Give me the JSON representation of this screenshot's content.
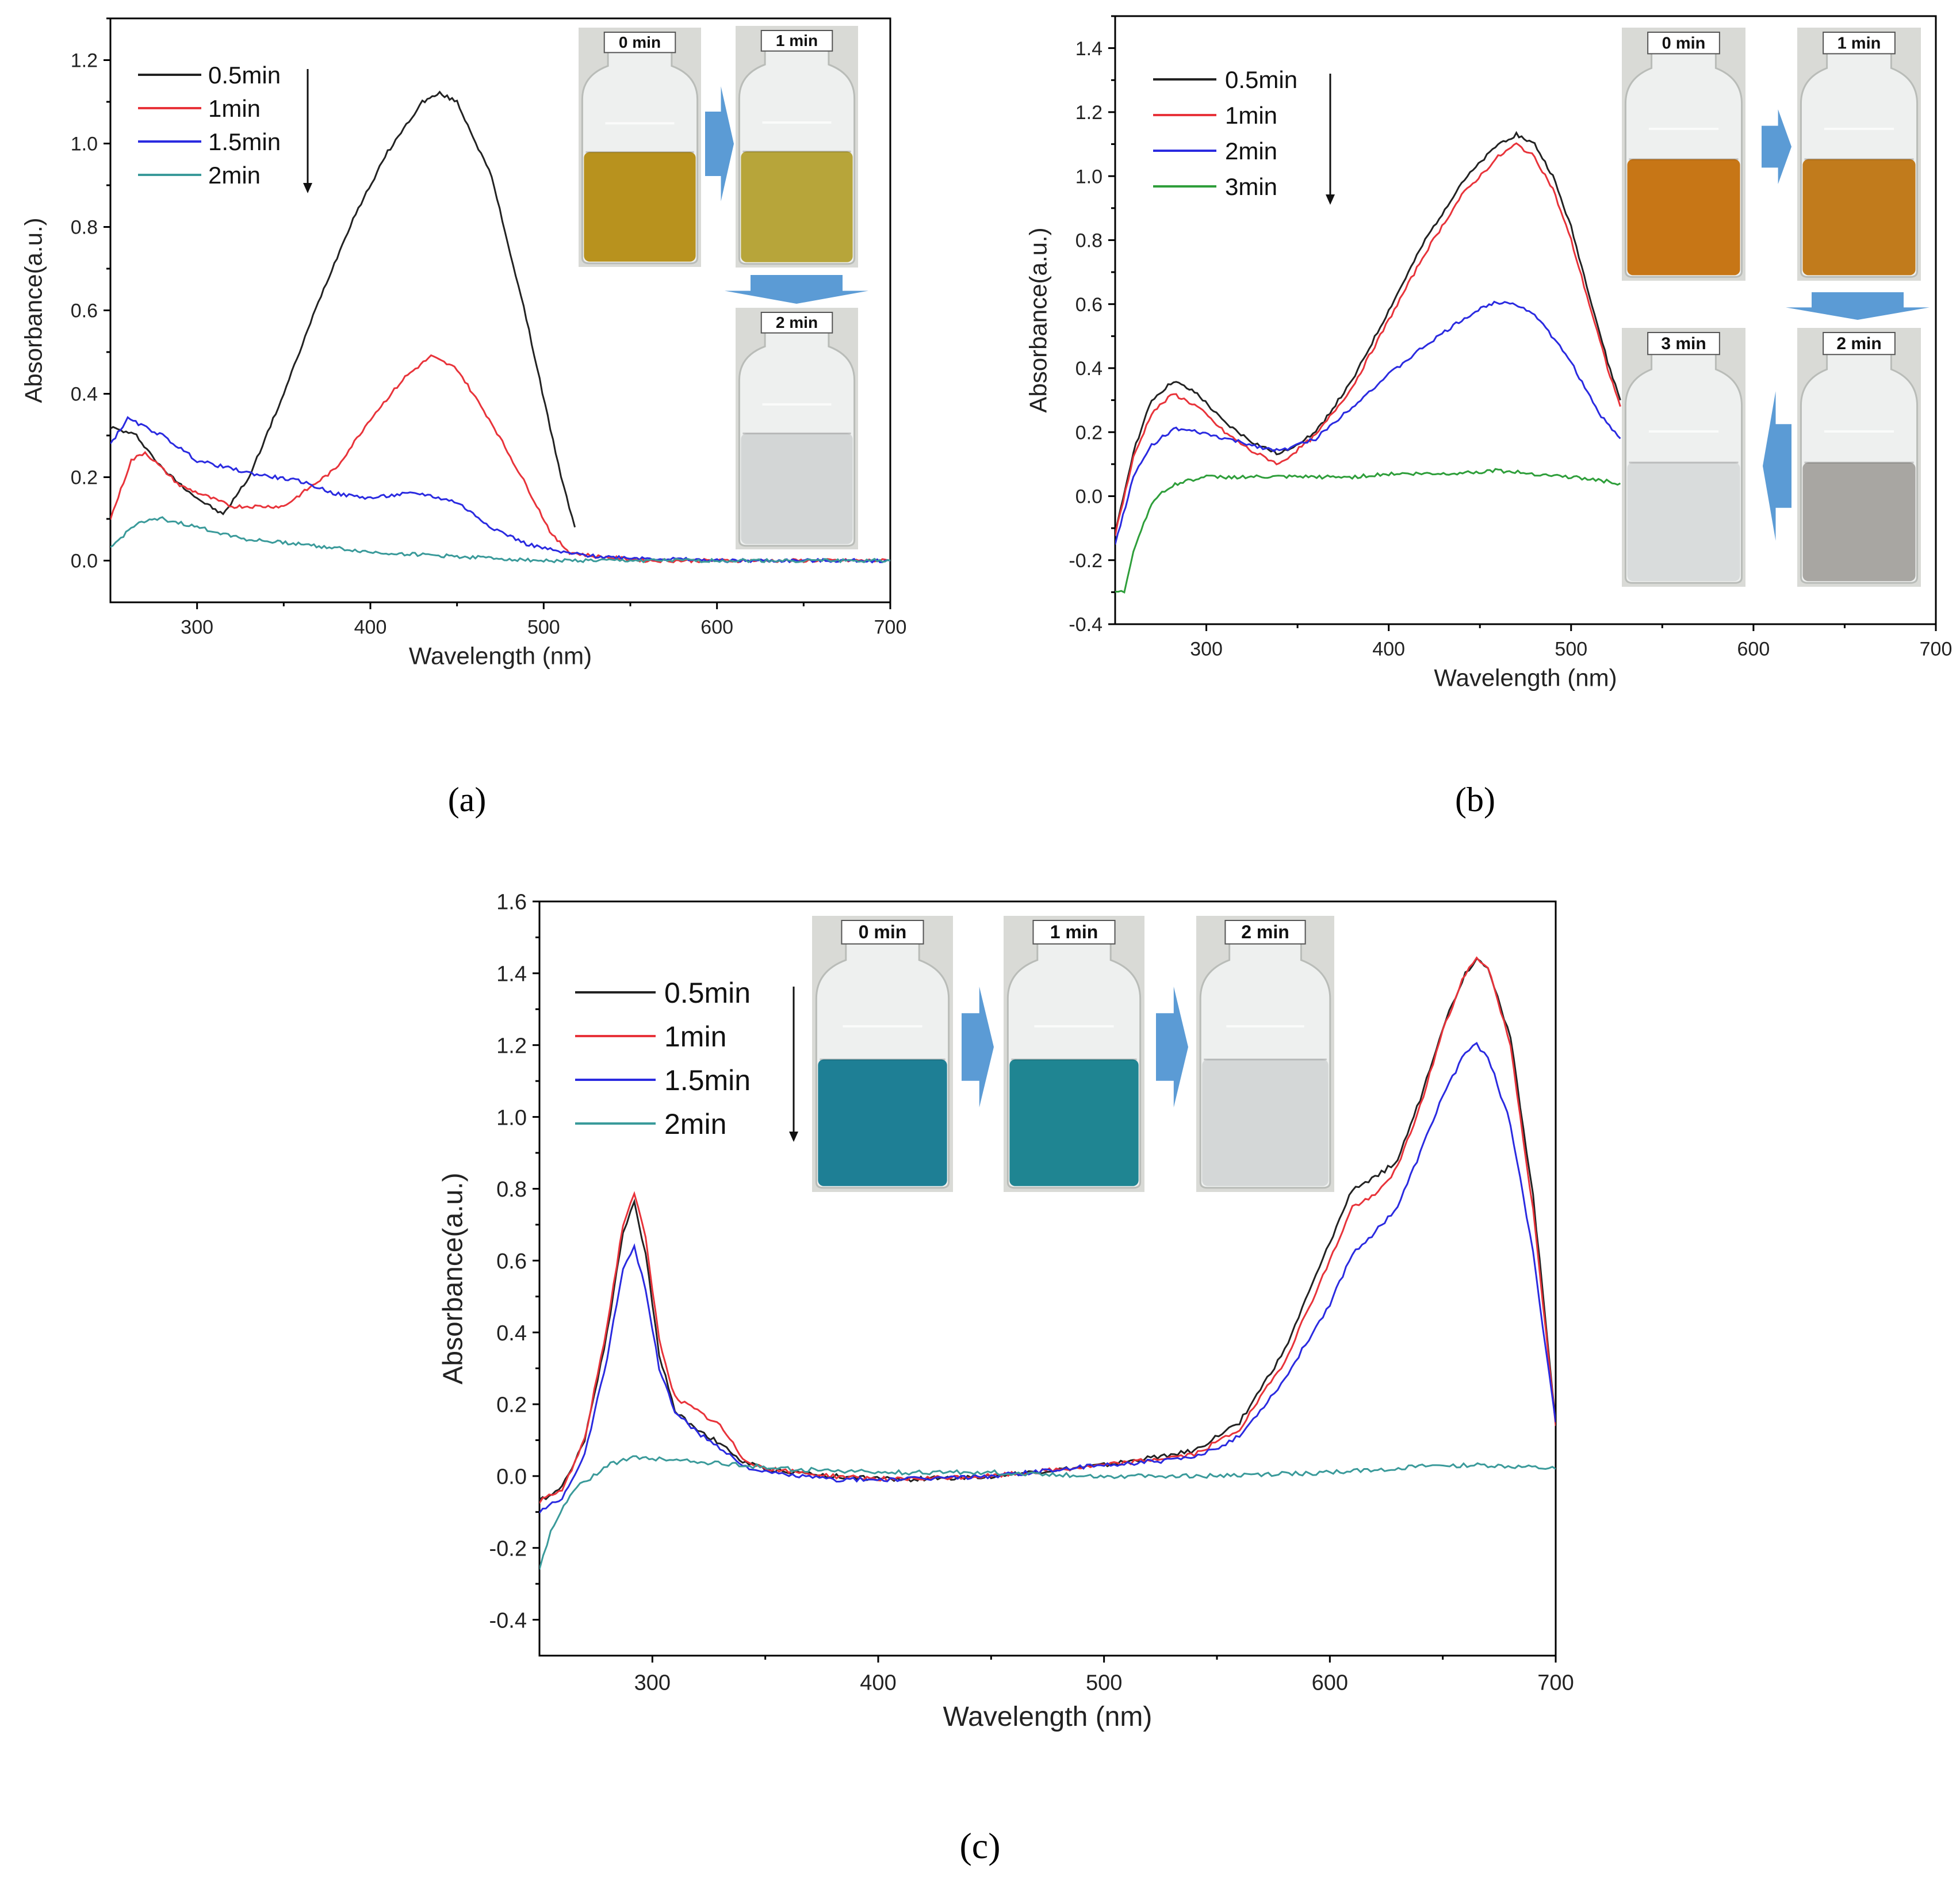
{
  "figure": {
    "captions": [
      "(a)",
      "(b)",
      "(c)"
    ]
  },
  "colors": {
    "black": "#222222",
    "red": "#e8333a",
    "blue": "#2a2ae0",
    "teal": "#3a9a9a",
    "green": "#2e9e3a",
    "arrow": "#5b9bd5"
  },
  "chart_data": [
    {
      "type": "line",
      "panel": "a",
      "caption": "(a)",
      "xlabel": "Wavelength (nm)",
      "ylabel": "Absorbance(a.u.)",
      "xlim": [
        250,
        700
      ],
      "ylim": [
        -0.1,
        1.3
      ],
      "xticks": [
        300,
        400,
        500,
        600,
        700
      ],
      "yticks": [
        0.0,
        0.2,
        0.4,
        0.6,
        0.8,
        1.0,
        1.2
      ],
      "legend_arrow": true,
      "series": [
        {
          "name": "0.5min",
          "color": "#222222",
          "x": [
            250,
            265,
            280,
            300,
            315,
            330,
            350,
            370,
            390,
            410,
            430,
            440,
            450,
            470,
            490,
            510,
            518
          ],
          "y": [
            0.32,
            0.3,
            0.22,
            0.15,
            0.11,
            0.2,
            0.4,
            0.62,
            0.82,
            0.98,
            1.1,
            1.12,
            1.1,
            0.92,
            0.58,
            0.2,
            0.08
          ]
        },
        {
          "name": "1min",
          "color": "#e8333a",
          "x": [
            250,
            262,
            270,
            290,
            320,
            350,
            380,
            400,
            420,
            435,
            450,
            470,
            490,
            505,
            515,
            530,
            560,
            600,
            650,
            700
          ],
          "y": [
            0.1,
            0.24,
            0.26,
            0.18,
            0.13,
            0.13,
            0.22,
            0.34,
            0.44,
            0.49,
            0.46,
            0.33,
            0.18,
            0.06,
            0.02,
            0.01,
            0.0,
            0.0,
            0.0,
            0.0
          ]
        },
        {
          "name": "1.5min",
          "color": "#2a2ae0",
          "x": [
            250,
            260,
            280,
            300,
            330,
            360,
            380,
            400,
            420,
            430,
            450,
            470,
            490,
            510,
            530,
            600,
            700
          ],
          "y": [
            0.28,
            0.34,
            0.3,
            0.24,
            0.21,
            0.19,
            0.16,
            0.15,
            0.16,
            0.16,
            0.14,
            0.08,
            0.04,
            0.02,
            0.01,
            0.0,
            0.0
          ]
        },
        {
          "name": "2min",
          "color": "#3a9a9a",
          "x": [
            250,
            265,
            280,
            300,
            330,
            360,
            400,
            450,
            500,
            550,
            600,
            650,
            700
          ],
          "y": [
            0.03,
            0.09,
            0.1,
            0.08,
            0.05,
            0.04,
            0.02,
            0.01,
            0.0,
            0.0,
            0.0,
            0.0,
            0.0
          ]
        }
      ],
      "vials": [
        {
          "label": "0 min",
          "liquid": "#b8921e"
        },
        {
          "label": "1 min",
          "liquid": "#b7a53a"
        },
        {
          "label": "2 min",
          "liquid": "#d3d6d6"
        }
      ]
    },
    {
      "type": "line",
      "panel": "b",
      "caption": "(b)",
      "xlabel": "Wavelength (nm)",
      "ylabel": "Absorbance(a.u.)",
      "xlim": [
        250,
        700
      ],
      "ylim": [
        -0.4,
        1.5
      ],
      "xticks": [
        300,
        400,
        500,
        600,
        700
      ],
      "yticks": [
        -0.4,
        -0.2,
        0.0,
        0.2,
        0.4,
        0.6,
        0.8,
        1.0,
        1.2,
        1.4
      ],
      "legend_arrow": true,
      "series": [
        {
          "name": "0.5min",
          "color": "#222222",
          "x": [
            250,
            260,
            270,
            282,
            295,
            310,
            325,
            340,
            360,
            380,
            400,
            420,
            440,
            460,
            470,
            480,
            490,
            500,
            510,
            520,
            527
          ],
          "y": [
            -0.12,
            0.14,
            0.3,
            0.36,
            0.32,
            0.23,
            0.17,
            0.13,
            0.2,
            0.36,
            0.58,
            0.8,
            0.98,
            1.1,
            1.13,
            1.1,
            1.0,
            0.84,
            0.63,
            0.42,
            0.3
          ]
        },
        {
          "name": "1min",
          "color": "#e8333a",
          "x": [
            250,
            260,
            270,
            282,
            295,
            310,
            325,
            340,
            360,
            380,
            400,
            420,
            440,
            460,
            470,
            480,
            490,
            500,
            510,
            520,
            527
          ],
          "y": [
            -0.12,
            0.12,
            0.26,
            0.32,
            0.28,
            0.2,
            0.14,
            0.1,
            0.19,
            0.34,
            0.55,
            0.76,
            0.94,
            1.06,
            1.1,
            1.06,
            0.96,
            0.8,
            0.6,
            0.4,
            0.28
          ]
        },
        {
          "name": "2min",
          "color": "#2a2ae0",
          "x": [
            250,
            260,
            270,
            282,
            295,
            310,
            325,
            340,
            360,
            380,
            400,
            420,
            440,
            455,
            465,
            480,
            500,
            515,
            527
          ],
          "y": [
            -0.15,
            0.06,
            0.16,
            0.21,
            0.2,
            0.18,
            0.16,
            0.14,
            0.18,
            0.28,
            0.38,
            0.47,
            0.55,
            0.6,
            0.61,
            0.57,
            0.42,
            0.26,
            0.18
          ]
        },
        {
          "name": "3min",
          "color": "#2e9e3a",
          "x": [
            250,
            255,
            260,
            270,
            280,
            290,
            300,
            320,
            350,
            380,
            400,
            430,
            460,
            480,
            500,
            515,
            527
          ],
          "y": [
            -0.3,
            -0.3,
            -0.17,
            -0.02,
            0.03,
            0.05,
            0.06,
            0.06,
            0.06,
            0.06,
            0.07,
            0.07,
            0.08,
            0.07,
            0.06,
            0.05,
            0.04
          ]
        }
      ],
      "vials": [
        {
          "label": "0 min",
          "liquid": "#c77616"
        },
        {
          "label": "1 min",
          "liquid": "#c17b1c"
        },
        {
          "label": "3 min",
          "liquid": "#d9dcdc"
        },
        {
          "label": "2 min",
          "liquid": "#a8a6a2"
        }
      ]
    },
    {
      "type": "line",
      "panel": "c",
      "caption": "(c)",
      "xlabel": "Wavelength (nm)",
      "ylabel": "Absorbance(a.u.)",
      "xlim": [
        250,
        700
      ],
      "ylim": [
        -0.5,
        1.6
      ],
      "xticks": [
        300,
        400,
        500,
        600,
        700
      ],
      "yticks": [
        -0.4,
        -0.2,
        0.0,
        0.2,
        0.4,
        0.6,
        0.8,
        1.0,
        1.2,
        1.4,
        1.6
      ],
      "legend_arrow": true,
      "series": [
        {
          "name": "0.5min",
          "color": "#222222",
          "x": [
            250,
            260,
            270,
            280,
            287,
            292,
            297,
            303,
            310,
            320,
            330,
            340,
            350,
            380,
            410,
            450,
            500,
            540,
            560,
            580,
            600,
            610,
            620,
            630,
            640,
            650,
            660,
            665,
            670,
            680,
            690,
            700
          ],
          "y": [
            -0.07,
            -0.03,
            0.1,
            0.4,
            0.68,
            0.76,
            0.62,
            0.34,
            0.18,
            0.13,
            0.09,
            0.04,
            0.02,
            0.0,
            -0.01,
            0.0,
            0.03,
            0.07,
            0.15,
            0.35,
            0.65,
            0.8,
            0.83,
            0.88,
            1.05,
            1.25,
            1.4,
            1.44,
            1.42,
            1.22,
            0.78,
            0.15
          ]
        },
        {
          "name": "1min",
          "color": "#e8333a",
          "x": [
            250,
            260,
            270,
            280,
            287,
            292,
            297,
            303,
            310,
            320,
            330,
            340,
            350,
            380,
            410,
            450,
            500,
            540,
            560,
            580,
            600,
            610,
            620,
            630,
            640,
            650,
            660,
            665,
            670,
            680,
            690,
            700
          ],
          "y": [
            -0.07,
            -0.04,
            0.1,
            0.42,
            0.7,
            0.79,
            0.66,
            0.38,
            0.22,
            0.18,
            0.14,
            0.05,
            0.02,
            0.0,
            -0.01,
            0.0,
            0.03,
            0.06,
            0.13,
            0.32,
            0.6,
            0.75,
            0.78,
            0.86,
            1.03,
            1.24,
            1.4,
            1.44,
            1.42,
            1.2,
            0.74,
            0.14
          ]
        },
        {
          "name": "1.5min",
          "color": "#2a2ae0",
          "x": [
            250,
            260,
            270,
            280,
            287,
            292,
            297,
            303,
            310,
            320,
            330,
            340,
            350,
            380,
            410,
            450,
            500,
            540,
            560,
            580,
            600,
            610,
            620,
            630,
            640,
            650,
            660,
            665,
            670,
            680,
            690,
            700
          ],
          "y": [
            -0.1,
            -0.06,
            0.06,
            0.33,
            0.58,
            0.64,
            0.52,
            0.3,
            0.18,
            0.12,
            0.08,
            0.03,
            0.01,
            -0.01,
            -0.01,
            0.0,
            0.03,
            0.05,
            0.11,
            0.27,
            0.48,
            0.62,
            0.68,
            0.75,
            0.9,
            1.06,
            1.18,
            1.2,
            1.17,
            0.98,
            0.62,
            0.15
          ]
        },
        {
          "name": "2min",
          "color": "#3a9a9a",
          "x": [
            250,
            255,
            265,
            280,
            290,
            300,
            320,
            340,
            360,
            400,
            450,
            500,
            550,
            600,
            650,
            670,
            700
          ],
          "y": [
            -0.26,
            -0.15,
            -0.04,
            0.03,
            0.05,
            0.05,
            0.04,
            0.03,
            0.02,
            0.01,
            0.01,
            0.0,
            0.0,
            0.01,
            0.03,
            0.03,
            0.02
          ]
        }
      ],
      "vials": [
        {
          "label": "0 min",
          "liquid": "#1e7f95"
        },
        {
          "label": "1 min",
          "liquid": "#1f8592"
        },
        {
          "label": "2 min",
          "liquid": "#d4d7d7"
        }
      ]
    }
  ]
}
